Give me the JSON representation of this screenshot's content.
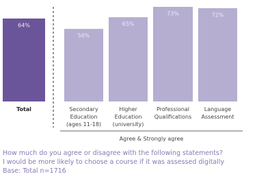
{
  "chart_data": {
    "type": "bar",
    "categories": [
      "Total",
      "Secondary\nEducation\n(ages 11-18)",
      "Higher\nEducation\n(university)",
      "Professional\nQualifications",
      "Language\nAssessment"
    ],
    "values": [
      64,
      56,
      65,
      73,
      72
    ],
    "value_labels": [
      "64%",
      "56%",
      "65%",
      "73%",
      "72%"
    ],
    "colors": [
      "#6b559a",
      "#b5aed0",
      "#b5aed0",
      "#b5aed0",
      "#b5aed0"
    ],
    "x_label": "Agree & Strongly agree",
    "notes": [
      "How much do you agree or disagree with  the following statements?",
      "I would be more likely to choose a course if it was assessed digitally",
      "Base: Total n=1716"
    ]
  }
}
